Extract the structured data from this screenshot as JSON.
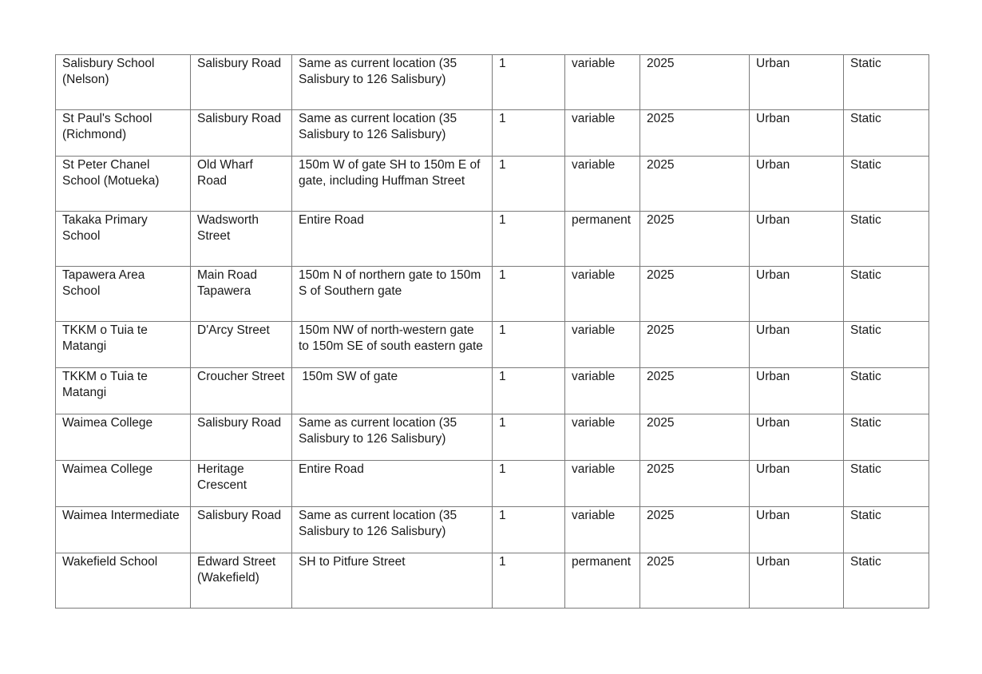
{
  "table": {
    "rows": [
      [
        "Salisbury School (Nelson)",
        "Salisbury Road",
        "Same as current location (35 Salisbury to 126 Salisbury)",
        "1",
        "variable",
        "2025",
        "Urban",
        "Static"
      ],
      [
        "St Paul's School (Richmond)",
        "Salisbury Road",
        "Same as current location (35 Salisbury to 126 Salisbury)",
        "1",
        "variable",
        "2025",
        "Urban",
        "Static"
      ],
      [
        "St Peter Chanel School (Motueka)",
        "Old Wharf Road",
        "150m W of gate SH to 150m E of gate, including Huffman Street",
        "1",
        "variable",
        "2025",
        "Urban",
        "Static"
      ],
      [
        "Takaka Primary School",
        "Wadsworth Street",
        "Entire Road",
        "1",
        "permanent",
        "2025",
        "Urban",
        "Static"
      ],
      [
        "Tapawera Area School",
        "Main Road Tapawera",
        "150m N of northern gate to 150m S of Southern gate",
        "1",
        "variable",
        "2025",
        "Urban",
        "Static"
      ],
      [
        "TKKM o Tuia te Matangi",
        "D'Arcy Street",
        "150m NW of north-western gate to 150m SE of south eastern gate",
        "1",
        "variable",
        "2025",
        "Urban",
        "Static"
      ],
      [
        "TKKM o Tuia te Matangi",
        "Croucher Street",
        " 150m SW of gate",
        "1",
        "variable",
        "2025",
        "Urban",
        "Static"
      ],
      [
        "Waimea College",
        "Salisbury Road",
        "Same as current location (35 Salisbury to 126 Salisbury)",
        "1",
        "variable",
        "2025",
        "Urban",
        "Static"
      ],
      [
        "Waimea College",
        "Heritage Crescent",
        "Entire Road",
        "1",
        "variable",
        "2025",
        "Urban",
        "Static"
      ],
      [
        "Waimea Intermediate",
        "Salisbury Road",
        "Same as current location (35 Salisbury to 126 Salisbury)",
        "1",
        "variable",
        "2025",
        "Urban",
        "Static"
      ],
      [
        "Wakefield School",
        "Edward Street (Wakefield)",
        "SH to Pitfure Street",
        "1",
        "permanent",
        "2025",
        "Urban",
        "Static"
      ]
    ]
  }
}
